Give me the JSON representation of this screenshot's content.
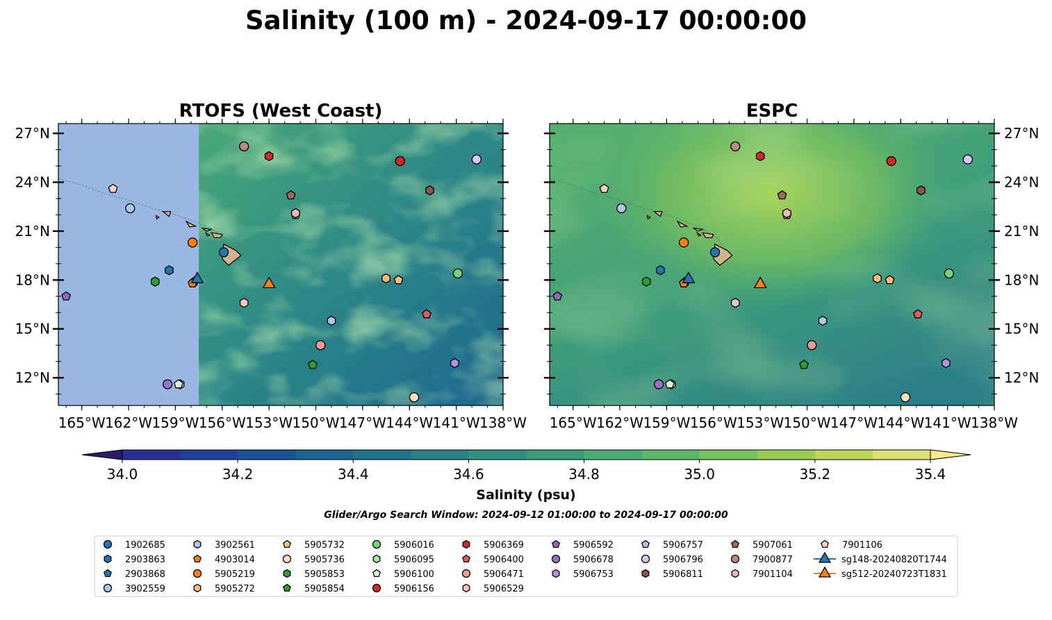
{
  "title": "Salinity (100 m) - 2024-09-17 00:00:00",
  "search_window": "Glider/Argo Search Window: 2024-09-12 01:00:00 to 2024-09-17 00:00:00",
  "chart_data": [
    {
      "type": "map",
      "title": "RTOFS (West Coast)",
      "lon_ticks": [
        -165,
        -162,
        -159,
        -156,
        -153,
        -150,
        -147,
        -144,
        -141,
        -138
      ],
      "lon_tick_labels": [
        "165°W",
        "162°W",
        "159°W",
        "156°W",
        "153°W",
        "150°W",
        "147°W",
        "144°W",
        "141°W",
        "138°W"
      ],
      "lat_ticks": [
        12,
        15,
        18,
        21,
        24,
        27
      ],
      "lat_tick_labels": [
        "12°N",
        "15°N",
        "18°N",
        "21°N",
        "24°N",
        "27°N"
      ],
      "lon_range": [
        -166.5,
        -138
      ],
      "lat_range": [
        10.3,
        27.6
      ],
      "data_domain_west_edge": -157.5,
      "missing_region_color": "#98b7e3"
    },
    {
      "type": "map",
      "title": "ESPC",
      "lon_ticks": [
        -165,
        -162,
        -159,
        -156,
        -153,
        -150,
        -147,
        -144,
        -141,
        -138
      ],
      "lon_tick_labels": [
        "165°W",
        "162°W",
        "159°W",
        "156°W",
        "153°W",
        "150°W",
        "147°W",
        "144°W",
        "141°W",
        "138°W"
      ],
      "lat_ticks": [
        12,
        15,
        18,
        21,
        24,
        27
      ],
      "lat_tick_labels": [
        "12°N",
        "15°N",
        "18°N",
        "21°N",
        "24°N",
        "27°N"
      ],
      "lon_range": [
        -166.5,
        -138
      ],
      "lat_range": [
        10.3,
        27.6
      ]
    }
  ],
  "colorbar": {
    "label": "Salinity (psu)",
    "min": 34.0,
    "max": 35.4,
    "step": 0.1,
    "ticks": [
      34.0,
      34.2,
      34.4,
      34.6,
      34.8,
      35.0,
      35.2,
      35.4
    ],
    "tick_labels": [
      "34.0",
      "34.2",
      "34.4",
      "34.6",
      "34.8",
      "35.0",
      "35.2",
      "35.4"
    ],
    "colors": [
      "#2b1b6b",
      "#2a2f98",
      "#223f9a",
      "#1a5295",
      "#1b6490",
      "#22728b",
      "#2b8086",
      "#338e82",
      "#3d9c7c",
      "#4aaa73",
      "#5cb769",
      "#77c25e",
      "#99cb57",
      "#bcd65a",
      "#ddde74",
      "#f4e98c"
    ]
  },
  "floats": [
    {
      "id": "1902685",
      "lon": -155.9,
      "lat": 19.7,
      "marker": "circle",
      "color": "#1f77b4"
    },
    {
      "id": "2903863",
      "lon": -159.4,
      "lat": 18.6,
      "marker": "hexagon",
      "color": "#1f77b4"
    },
    {
      "id": "2903868",
      "lon": -157.8,
      "lat": 17.9,
      "marker": "pentagon",
      "color": "#1f77b4"
    },
    {
      "id": "3902559",
      "lon": -161.9,
      "lat": 22.4,
      "marker": "circle",
      "color": "#aec7e8"
    },
    {
      "id": "3902561",
      "lon": -149.0,
      "lat": 15.5,
      "marker": "hexagon",
      "color": "#aec7e8"
    },
    {
      "id": "4903014",
      "lon": -157.9,
      "lat": 17.8,
      "marker": "pentagon",
      "color": "#ff7f0e"
    },
    {
      "id": "5905219",
      "lon": -157.9,
      "lat": 20.3,
      "marker": "circle",
      "color": "#ff7f0e"
    },
    {
      "id": "5905272",
      "lon": -145.5,
      "lat": 18.1,
      "marker": "hexagon",
      "color": "#ffbb78"
    },
    {
      "id": "5905732",
      "lon": -144.7,
      "lat": 18.0,
      "marker": "pentagon",
      "color": "#ffbb78"
    },
    {
      "id": "5905736",
      "lon": -143.7,
      "lat": 10.8,
      "marker": "circle",
      "color": "#ffe0c0"
    },
    {
      "id": "5905853",
      "lon": -160.3,
      "lat": 17.9,
      "marker": "hexagon",
      "color": "#2ca02c"
    },
    {
      "id": "5905854",
      "lon": -150.2,
      "lat": 12.8,
      "marker": "pentagon",
      "color": "#2ca02c"
    },
    {
      "id": "5906016",
      "lon": -140.9,
      "lat": 18.4,
      "marker": "circle",
      "color": "#76d276"
    },
    {
      "id": "5906095",
      "lon": -158.7,
      "lat": 11.6,
      "marker": "hexagon",
      "color": "#a9e6a0"
    },
    {
      "id": "5906100",
      "lon": -158.8,
      "lat": 11.6,
      "marker": "pentagon",
      "color": "#d8f7d0"
    },
    {
      "id": "5906156",
      "lon": -144.6,
      "lat": 25.3,
      "marker": "circle",
      "color": "#d62728"
    },
    {
      "id": "5906369",
      "lon": -153.0,
      "lat": 25.6,
      "marker": "hexagon",
      "color": "#d62728"
    },
    {
      "id": "5906400",
      "lon": -142.9,
      "lat": 15.9,
      "marker": "pentagon",
      "color": "#e05a5a"
    },
    {
      "id": "5906471",
      "lon": -149.7,
      "lat": 14.0,
      "marker": "circle",
      "color": "#f19b95"
    },
    {
      "id": "5906529",
      "lon": -154.6,
      "lat": 16.6,
      "marker": "hexagon",
      "color": "#f7c4c0"
    },
    {
      "id": "5906592",
      "lon": -166.0,
      "lat": 17.0,
      "marker": "pentagon",
      "color": "#9467bd"
    },
    {
      "id": "5906678",
      "lon": -159.5,
      "lat": 11.6,
      "marker": "circle",
      "color": "#9a6fcb"
    },
    {
      "id": "5906753",
      "lon": -141.1,
      "lat": 12.9,
      "marker": "hexagon",
      "color": "#b592e0"
    },
    {
      "id": "5906757",
      "lon": -151.3,
      "lat": 22.0,
      "marker": "pentagon",
      "color": "#cbb0ef"
    },
    {
      "id": "5906796",
      "lon": -139.7,
      "lat": 25.4,
      "marker": "circle",
      "color": "#dcc7f2"
    },
    {
      "id": "5906811",
      "lon": -142.7,
      "lat": 23.5,
      "marker": "hexagon",
      "color": "#8c564b"
    },
    {
      "id": "5907061",
      "lon": -151.6,
      "lat": 23.2,
      "marker": "pentagon",
      "color": "#a06a5e"
    },
    {
      "id": "7900877",
      "lon": -154.6,
      "lat": 26.2,
      "marker": "circle",
      "color": "#bf8a7e"
    },
    {
      "id": "7901104",
      "lon": -151.3,
      "lat": 22.1,
      "marker": "hexagon",
      "color": "#f3b7b0"
    },
    {
      "id": "7901106",
      "lon": -163.0,
      "lat": 23.6,
      "marker": "pentagon",
      "color": "#fcd2c7"
    }
  ],
  "gliders": [
    {
      "id": "sg148-20240820T1744",
      "lon": -157.6,
      "lat": 18.1,
      "color": "#1f77b4"
    },
    {
      "id": "sg512-20240723T1831",
      "lon": -153.0,
      "lat": 17.8,
      "color": "#ff7f0e"
    }
  ]
}
